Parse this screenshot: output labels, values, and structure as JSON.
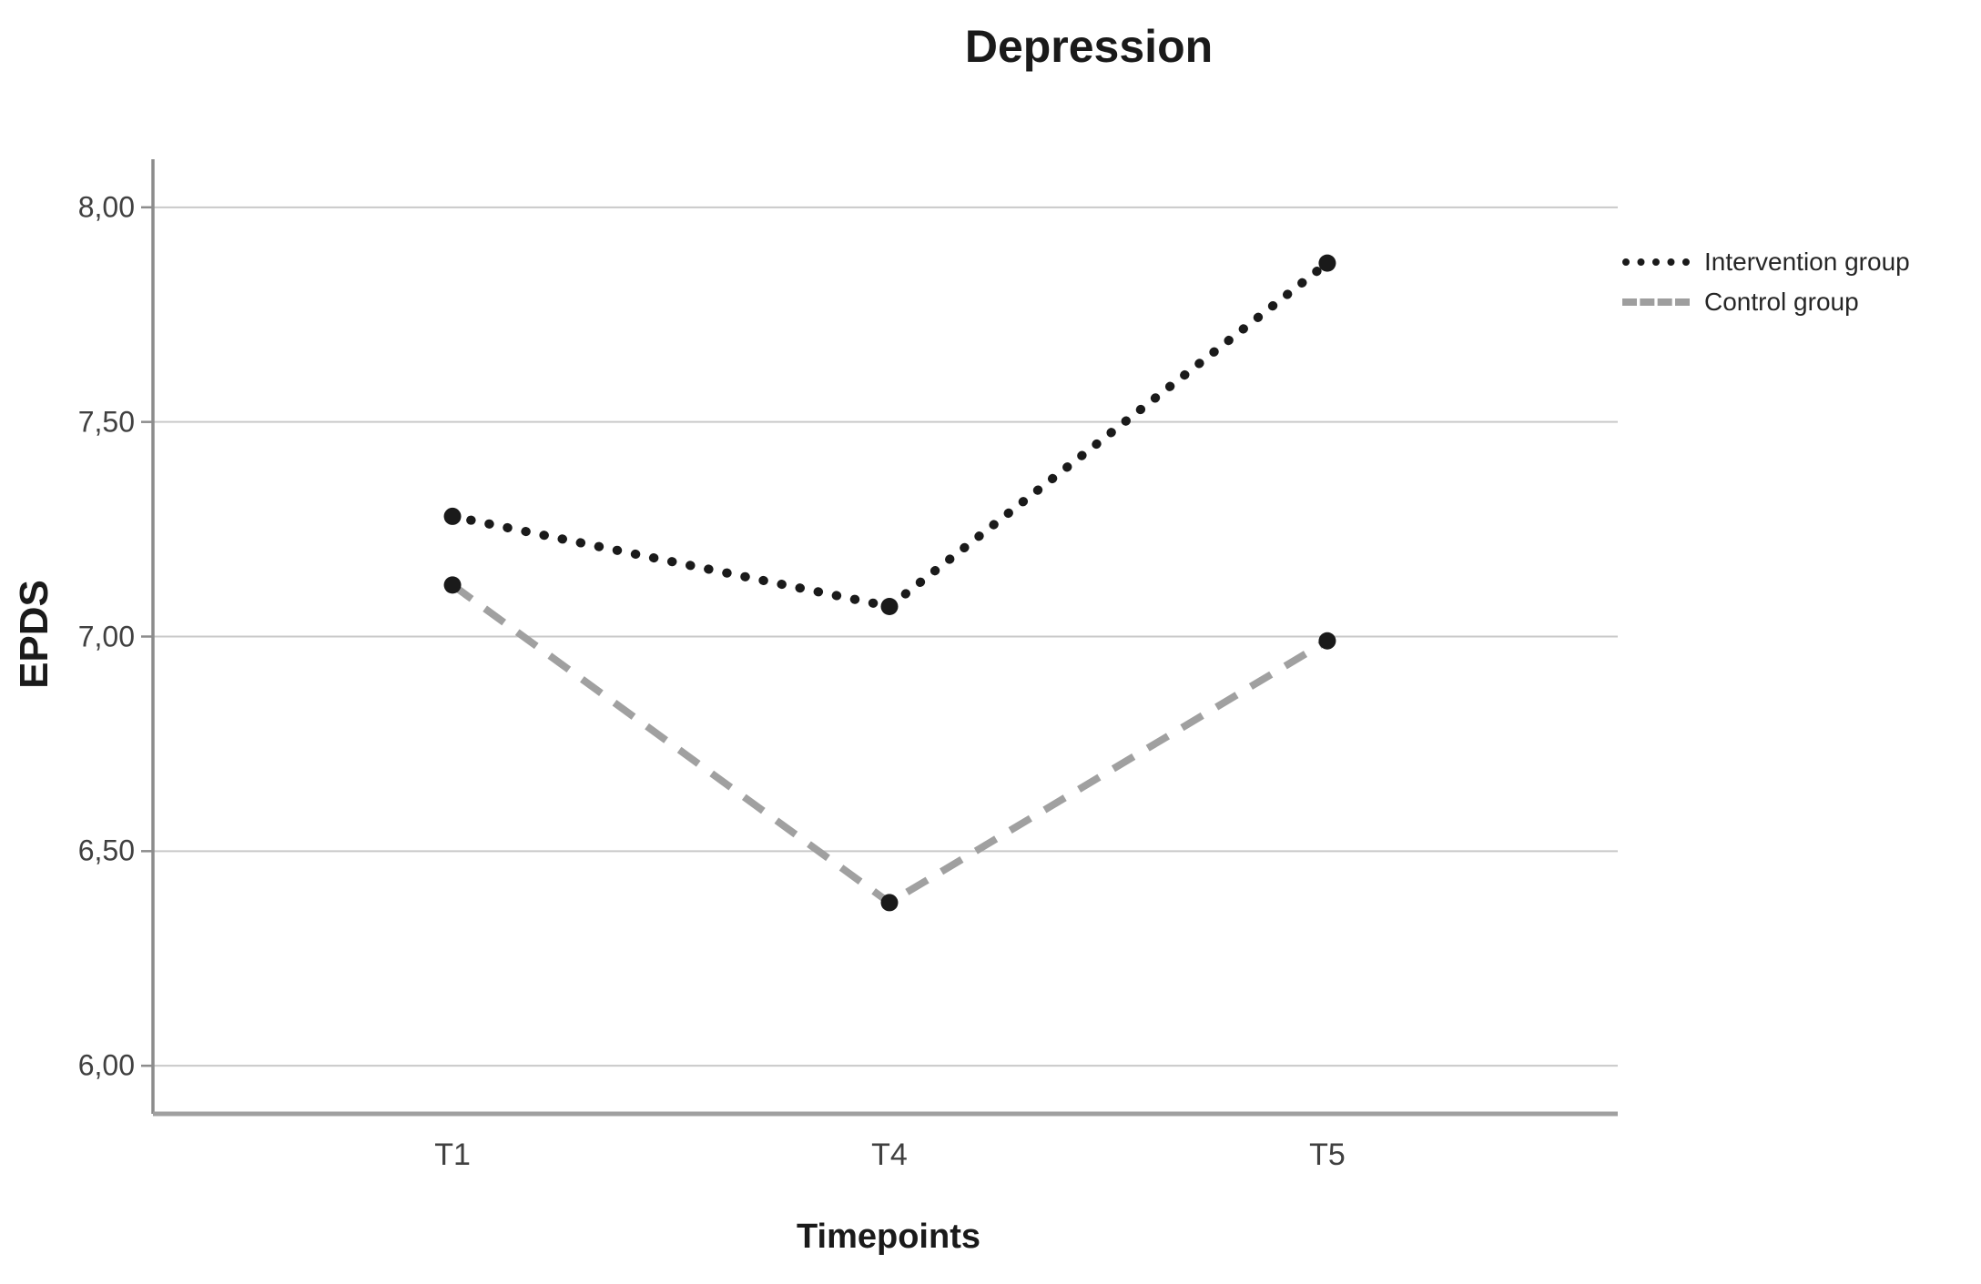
{
  "chart_data": {
    "type": "line",
    "title": "Depression",
    "xlabel": "Timepoints",
    "ylabel": "EPDS",
    "categories": [
      "T1",
      "T4",
      "T5"
    ],
    "series": [
      {
        "name": "Intervention group",
        "values": [
          7.28,
          7.07,
          7.87
        ],
        "line_style": "dotted",
        "line_color": "#1a1a1a",
        "marker": "circle",
        "marker_color": "#1a1a1a"
      },
      {
        "name": "Control group",
        "values": [
          7.12,
          6.38,
          6.99
        ],
        "line_style": "dashed",
        "line_color": "#a0a0a0",
        "marker": "circle",
        "marker_color": "#1a1a1a"
      }
    ],
    "y_ticks": [
      "8,00",
      "7,50",
      "7,00",
      "6,50",
      "6,00"
    ],
    "y_tick_values": [
      8.0,
      7.5,
      7.0,
      6.5,
      6.0
    ],
    "ylim": [
      5.888,
      8.112
    ],
    "grid": "horizontal",
    "legend_position": "upper-right",
    "decimal_separator": ","
  },
  "colors": {
    "background": "#ffffff",
    "gridline": "#c9c9c9",
    "axis_line": "#8c8c8c",
    "bottom_axis_line": "#a0a0a0",
    "tick_label": "#404040",
    "text": "#1a1a1a"
  }
}
